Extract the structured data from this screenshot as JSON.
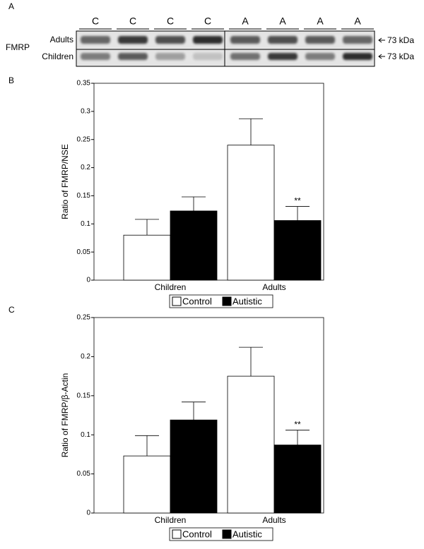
{
  "panel_a": {
    "letter": "A",
    "lanes": [
      "C",
      "C",
      "C",
      "C",
      "A",
      "A",
      "A",
      "A"
    ],
    "protein": "FMRP",
    "rows": [
      "Adults",
      "Children"
    ],
    "size_labels": [
      "73 kDa",
      "73 kDa"
    ]
  },
  "chart_data": [
    {
      "type": "bar",
      "panel": "B",
      "ylabel": "Ratio of FMRP/NSE",
      "categories": [
        "Children",
        "Adults"
      ],
      "series": [
        {
          "name": "Control",
          "color": "#ffffff",
          "values": [
            0.08,
            0.24
          ],
          "errors": [
            0.028,
            0.047
          ]
        },
        {
          "name": "Autistic",
          "color": "#000000",
          "values": [
            0.123,
            0.106
          ],
          "errors": [
            0.025,
            0.025
          ]
        }
      ],
      "annotation": "**",
      "ylim": [
        0,
        0.35
      ],
      "yticks": [
        0,
        0.05,
        0.1,
        0.15,
        0.2,
        0.25,
        0.3,
        0.35
      ]
    },
    {
      "type": "bar",
      "panel": "C",
      "ylabel": "Ratio of FMRP/β-Actin",
      "categories": [
        "Children",
        "Adults"
      ],
      "series": [
        {
          "name": "Control",
          "color": "#ffffff",
          "values": [
            0.073,
            0.175
          ],
          "errors": [
            0.026,
            0.037
          ]
        },
        {
          "name": "Autistic",
          "color": "#000000",
          "values": [
            0.119,
            0.087
          ],
          "errors": [
            0.023,
            0.019
          ]
        }
      ],
      "annotation": "**",
      "ylim": [
        0,
        0.25
      ],
      "yticks": [
        0,
        0.05,
        0.1,
        0.15,
        0.2,
        0.25
      ]
    }
  ]
}
